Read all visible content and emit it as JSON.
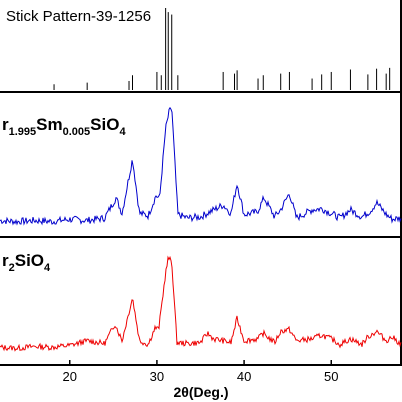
{
  "chart_data": [
    {
      "type": "bar",
      "title": "Stick Pattern-39-1256",
      "color": "#000000",
      "x": [
        18.2,
        22.0,
        26.8,
        27.2,
        30.0,
        30.5,
        31.0,
        31.3,
        31.7,
        32.4,
        37.6,
        38.9,
        39.2,
        41.6,
        42.2,
        44.2,
        45.2,
        47.8,
        48.9,
        50.0,
        52.2,
        54.2,
        55.2,
        56.3,
        56.7
      ],
      "values": [
        7,
        9,
        11,
        18,
        22,
        18,
        100,
        95,
        92,
        18,
        22,
        20,
        24,
        14,
        18,
        20,
        22,
        14,
        19,
        22,
        25,
        19,
        26,
        20,
        27
      ],
      "xlim": [
        12,
        58
      ],
      "ylim": [
        0,
        100
      ],
      "ylabel": ""
    },
    {
      "type": "line",
      "label_main": "r",
      "label_sub1": "1.995",
      "label_mid": "Sm",
      "label_sub2": "0.005",
      "label_tail": "SiO",
      "label_sub3": "4",
      "color": "#0000cc",
      "x": [
        12,
        14,
        16,
        18,
        20,
        22,
        24,
        25.3,
        26,
        27.2,
        28,
        29,
        29.9,
        30.3,
        31.0,
        31.4,
        31.7,
        32.4,
        33.5,
        35,
        36,
        37.6,
        38.5,
        39.2,
        40,
        41.5,
        42.3,
        43.5,
        44.2,
        45.2,
        46,
        47.8,
        48.9,
        50,
        51,
        52.2,
        53.5,
        54.5,
        55.2,
        56.3,
        57,
        58
      ],
      "y": [
        3,
        2,
        3,
        2,
        4,
        3,
        5,
        22,
        9,
        55,
        9,
        7,
        24,
        21,
        80,
        94,
        98,
        8,
        5,
        6,
        10,
        16,
        9,
        34,
        8,
        10,
        22,
        6,
        12,
        26,
        5,
        12,
        13,
        9,
        5,
        12,
        6,
        11,
        18,
        8,
        4,
        5
      ],
      "xlim": [
        12,
        58
      ],
      "ylim": [
        0,
        100
      ]
    },
    {
      "type": "line",
      "label_main": "r",
      "label_sub1": "2",
      "label_tail": "SiO",
      "label_sub3": "4",
      "color": "#ee0000",
      "x": [
        12,
        14,
        16,
        18,
        20,
        22,
        24,
        25.2,
        26,
        27.2,
        28,
        29,
        29.8,
        30.2,
        31.0,
        31.3,
        31.7,
        32.3,
        33.5,
        35,
        35.8,
        36.5,
        37.6,
        38.5,
        39.2,
        40,
        41.6,
        42.2,
        43.5,
        44.2,
        45.2,
        46,
        47.8,
        48.9,
        50,
        51,
        52.2,
        53.5,
        54.2,
        55.2,
        56.3,
        57,
        58
      ],
      "y": [
        5,
        4,
        6,
        5,
        7,
        12,
        9,
        30,
        12,
        58,
        12,
        8,
        26,
        24,
        84,
        100,
        96,
        10,
        9,
        10,
        20,
        14,
        12,
        10,
        36,
        12,
        14,
        20,
        10,
        22,
        24,
        12,
        14,
        18,
        14,
        8,
        14,
        8,
        16,
        22,
        12,
        16,
        8
      ],
      "xlim": [
        12,
        58
      ],
      "ylim": [
        0,
        100
      ]
    }
  ],
  "x_axis": {
    "label": "2θ(Deg.)",
    "ticks": [
      20,
      30,
      40,
      50
    ],
    "tick_labels": [
      "20",
      "30",
      "40",
      "50"
    ]
  }
}
